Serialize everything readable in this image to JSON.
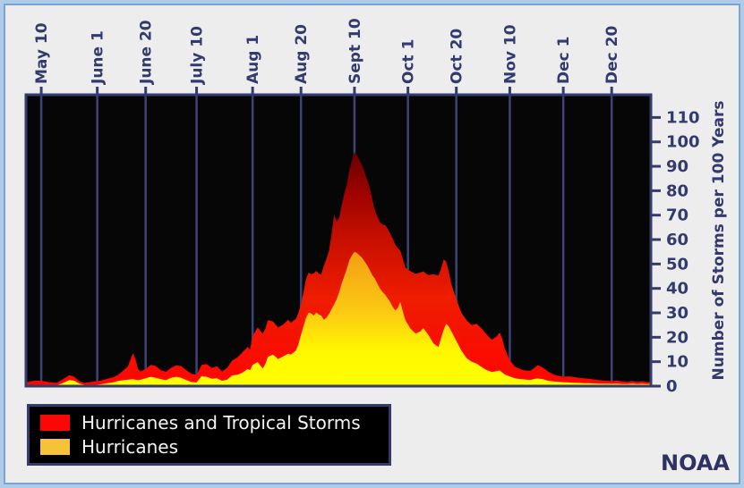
{
  "branding": {
    "logo_text": "NOAA"
  },
  "colors": {
    "page_background": "#aecbe8",
    "page_border": "#7ba3d3",
    "panel_background": "#ededee",
    "plot_background": "#060606",
    "gridline": "#3d4377",
    "axis_line": "#353b6d",
    "axis_text": "#333a6e",
    "legend_background": "#000000",
    "legend_border": "#353b6d",
    "legend_text": "#f4f4f4",
    "total_storms_swatch": "#fb0806",
    "hurricanes_swatch": "#f6c23a",
    "total_storms_gradient": [
      [
        0,
        "#ff0500"
      ],
      [
        0.3,
        "#ef1c00"
      ],
      [
        0.5,
        "#c81000"
      ],
      [
        0.65,
        "#a30300"
      ],
      [
        0.8,
        "#670000"
      ],
      [
        1,
        "#380000"
      ]
    ],
    "hurricanes_gradient": [
      [
        0,
        "#ffff00"
      ],
      [
        0.12,
        "#fff800"
      ],
      [
        0.25,
        "#fcca12"
      ],
      [
        0.4,
        "#f6ab14"
      ],
      [
        0.52,
        "#f09414"
      ],
      [
        0.7,
        "#e07d04"
      ],
      [
        1,
        "#c66200"
      ]
    ]
  },
  "chart_data": {
    "type": "area",
    "title": "",
    "x_axis": {
      "unit": "days since May 1",
      "domain_days": [
        3,
        248.4
      ],
      "ticks": [
        {
          "label": "May 10",
          "day": 9
        },
        {
          "label": "June 1",
          "day": 31
        },
        {
          "label": "June 20",
          "day": 50
        },
        {
          "label": "July 10",
          "day": 70
        },
        {
          "label": "Aug 1",
          "day": 92
        },
        {
          "label": "Aug 20",
          "day": 111
        },
        {
          "label": "Sept 10",
          "day": 132
        },
        {
          "label": "Oct 1",
          "day": 153
        },
        {
          "label": "Oct 20",
          "day": 172
        },
        {
          "label": "Nov 10",
          "day": 193
        },
        {
          "label": "Dec 1",
          "day": 214
        },
        {
          "label": "Dec 20",
          "day": 233
        }
      ]
    },
    "y_axis": {
      "title": "Number of Storms per 100 Years",
      "ticks": [
        0,
        10,
        20,
        30,
        40,
        50,
        60,
        70,
        80,
        90,
        100,
        110
      ],
      "range": [
        0,
        119.3
      ]
    },
    "legend": [
      {
        "label": "Hurricanes and Tropical Storms",
        "color": "#fb0806"
      },
      {
        "label": "Hurricanes",
        "color": "#f6c23a"
      }
    ],
    "grid": "vertical-only",
    "legend_position": "bottom-left",
    "series_columns": [
      "day_since_may1",
      "hurricanes_and_tropical_storms",
      "hurricanes"
    ],
    "samples": [
      [
        3,
        1.5,
        0.3
      ],
      [
        6,
        2.2,
        0.3
      ],
      [
        9,
        2.2,
        0.4
      ],
      [
        12,
        1.6,
        0.3
      ],
      [
        15,
        1.3,
        0.4
      ],
      [
        17,
        2.5,
        1.0
      ],
      [
        20,
        4.5,
        2.5
      ],
      [
        22,
        3.8,
        2.2
      ],
      [
        24,
        2.0,
        1.0
      ],
      [
        26,
        1.3,
        0.5
      ],
      [
        29,
        1.8,
        0.5
      ],
      [
        31,
        2.0,
        0.6
      ],
      [
        33,
        2.4,
        0.8
      ],
      [
        35,
        3.0,
        1.2
      ],
      [
        37,
        3.5,
        1.5
      ],
      [
        39,
        4.5,
        2.0
      ],
      [
        41,
        6.2,
        2.4
      ],
      [
        43,
        8.0,
        2.6
      ],
      [
        45,
        13.5,
        2.8
      ],
      [
        46,
        11.0,
        2.6
      ],
      [
        47,
        7.0,
        2.4
      ],
      [
        48,
        6.0,
        2.6
      ],
      [
        50,
        7.0,
        3.2
      ],
      [
        52,
        8.7,
        3.8
      ],
      [
        54,
        8.2,
        3.4
      ],
      [
        56,
        6.5,
        2.8
      ],
      [
        58,
        5.9,
        2.4
      ],
      [
        60,
        7.5,
        3.4
      ],
      [
        62,
        8.5,
        3.8
      ],
      [
        64,
        8.2,
        3.4
      ],
      [
        66,
        6.5,
        2.4
      ],
      [
        68,
        5.0,
        1.7
      ],
      [
        70,
        4.7,
        1.5
      ],
      [
        72,
        8.7,
        4.1
      ],
      [
        74,
        9.0,
        3.8
      ],
      [
        76,
        7.4,
        3.0
      ],
      [
        78,
        8.2,
        3.2
      ],
      [
        80,
        6.0,
        2.2
      ],
      [
        82,
        7.5,
        2.6
      ],
      [
        84,
        10.5,
        4.4
      ],
      [
        86,
        11.7,
        4.6
      ],
      [
        88,
        13.8,
        5.5
      ],
      [
        90,
        16.0,
        7.0
      ],
      [
        91,
        15.0,
        6.5
      ],
      [
        92,
        20.5,
        8.7
      ],
      [
        94,
        24.0,
        9.8
      ],
      [
        96,
        21.5,
        7.2
      ],
      [
        97,
        23.5,
        9.0
      ],
      [
        98,
        27.0,
        12.0
      ],
      [
        100,
        26.5,
        12.9
      ],
      [
        102,
        24.0,
        11.1
      ],
      [
        104,
        25.2,
        12.2
      ],
      [
        106,
        27.2,
        13.3
      ],
      [
        107,
        26.0,
        12.9
      ],
      [
        109,
        27.5,
        14.5
      ],
      [
        110,
        30.0,
        17.0
      ],
      [
        111,
        33.5,
        21.0
      ],
      [
        112,
        38.5,
        24.5
      ],
      [
        113,
        44.0,
        28.0
      ],
      [
        114,
        46.5,
        30.0
      ],
      [
        115,
        45.8,
        29.8
      ],
      [
        116,
        46.2,
        28.9
      ],
      [
        117,
        47.2,
        30.1
      ],
      [
        118,
        46.0,
        29.3
      ],
      [
        119,
        45.8,
        28.8
      ],
      [
        120,
        49.5,
        27.2
      ],
      [
        121,
        52.0,
        28.0
      ],
      [
        122,
        55.5,
        29.5
      ],
      [
        123,
        62.0,
        31.5
      ],
      [
        124,
        70.2,
        33.5
      ],
      [
        125,
        67.5,
        35.5
      ],
      [
        126,
        69.0,
        38.5
      ],
      [
        127,
        74.0,
        42.0
      ],
      [
        128,
        78.8,
        45.0
      ],
      [
        129,
        82.5,
        48.0
      ],
      [
        130,
        88.5,
        51.5
      ],
      [
        131,
        92.5,
        53.5
      ],
      [
        132,
        95.8,
        55.0
      ],
      [
        133,
        94.5,
        54.5
      ],
      [
        134,
        92.5,
        53.5
      ],
      [
        135,
        90.5,
        52.5
      ],
      [
        136,
        87.5,
        51.0
      ],
      [
        137,
        84.5,
        49.5
      ],
      [
        138,
        81.0,
        47.5
      ],
      [
        139,
        76.5,
        45.5
      ],
      [
        140,
        72.0,
        44.0
      ],
      [
        141,
        69.5,
        42.0
      ],
      [
        142,
        67.0,
        40.0
      ],
      [
        143,
        66.2,
        38.5
      ],
      [
        144,
        66.0,
        37.5
      ],
      [
        145,
        64.5,
        36.0
      ],
      [
        146,
        62.5,
        34.5
      ],
      [
        147,
        60.5,
        32.5
      ],
      [
        148,
        58.0,
        31.0
      ],
      [
        149,
        56.5,
        32.0
      ],
      [
        150,
        55.5,
        34.5
      ],
      [
        151,
        52.0,
        30.5
      ],
      [
        152,
        48.5,
        27.0
      ],
      [
        154,
        47.0,
        23.5
      ],
      [
        156,
        46.0,
        21.5
      ],
      [
        158,
        46.5,
        22.5
      ],
      [
        159,
        47.0,
        23.8
      ],
      [
        161,
        45.5,
        21.0
      ],
      [
        163,
        45.8,
        17.5
      ],
      [
        165,
        45.3,
        16.0
      ],
      [
        166,
        48.0,
        19.5
      ],
      [
        167,
        51.9,
        23.0
      ],
      [
        168,
        51.0,
        25.5
      ],
      [
        169,
        47.0,
        24.5
      ],
      [
        170,
        42.0,
        22.5
      ],
      [
        172,
        35.5,
        18.5
      ],
      [
        174,
        30.0,
        14.5
      ],
      [
        176,
        27.0,
        11.5
      ],
      [
        178,
        25.0,
        10.0
      ],
      [
        180,
        25.5,
        9.2
      ],
      [
        182,
        23.5,
        7.8
      ],
      [
        184,
        21.0,
        6.5
      ],
      [
        186,
        19.0,
        5.8
      ],
      [
        188,
        20.5,
        6.2
      ],
      [
        189,
        22.0,
        6.4
      ],
      [
        190,
        19.5,
        5.6
      ],
      [
        191,
        15.5,
        4.8
      ],
      [
        193,
        10.5,
        3.9
      ],
      [
        195,
        8.0,
        3.2
      ],
      [
        197,
        7.0,
        2.9
      ],
      [
        199,
        6.4,
        2.7
      ],
      [
        201,
        6.2,
        2.5
      ],
      [
        203,
        7.8,
        3.0
      ],
      [
        204,
        8.6,
        3.1
      ],
      [
        206,
        7.6,
        2.8
      ],
      [
        208,
        6.0,
        2.2
      ],
      [
        210,
        4.8,
        1.9
      ],
      [
        212,
        4.2,
        1.8
      ],
      [
        214,
        3.8,
        1.6
      ],
      [
        216,
        4.0,
        1.5
      ],
      [
        218,
        3.8,
        1.4
      ],
      [
        220,
        3.4,
        1.3
      ],
      [
        222,
        3.2,
        1.2
      ],
      [
        224,
        3.0,
        1.2
      ],
      [
        226,
        2.7,
        1.1
      ],
      [
        228,
        2.5,
        1.0
      ],
      [
        230,
        2.3,
        1.0
      ],
      [
        233,
        2.0,
        0.9
      ],
      [
        235,
        2.3,
        1.0
      ],
      [
        237,
        1.9,
        0.8
      ],
      [
        239,
        1.7,
        0.8
      ],
      [
        241,
        2.1,
        1.0
      ],
      [
        243,
        1.7,
        0.8
      ],
      [
        245,
        1.9,
        0.9
      ],
      [
        247,
        1.6,
        0.8
      ],
      [
        248,
        1.8,
        0.9
      ]
    ]
  }
}
